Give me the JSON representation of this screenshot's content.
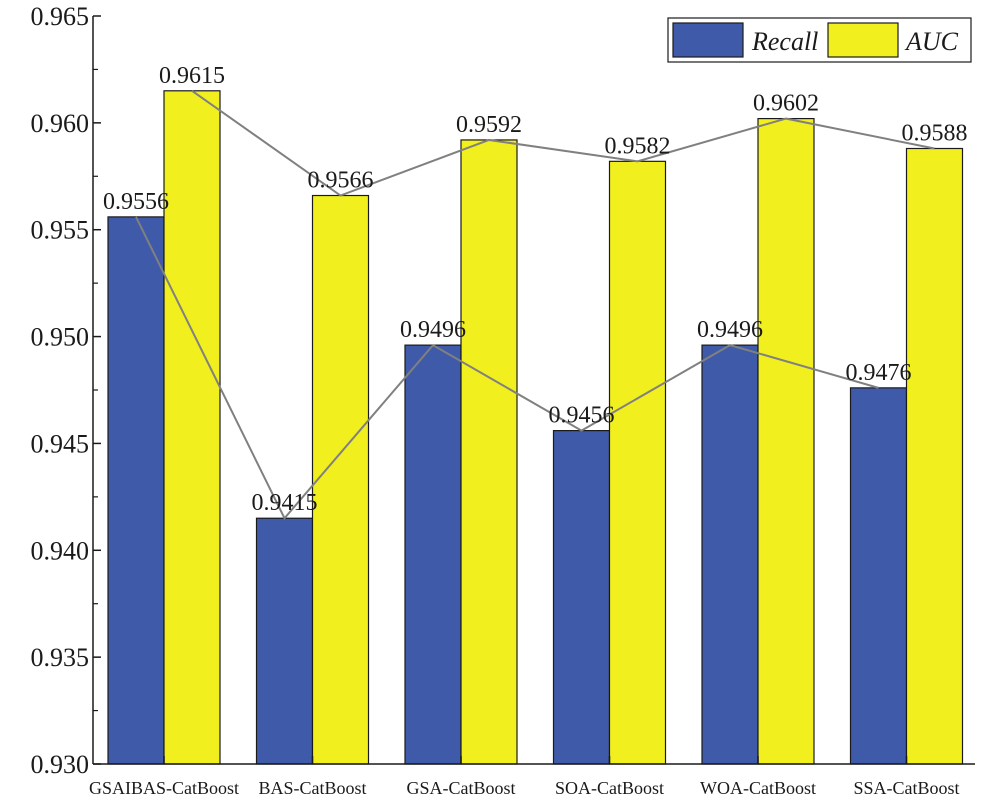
{
  "chart_data": {
    "type": "bar",
    "categories": [
      "GSAIBAS-CatBoost",
      "BAS-CatBoost",
      "GSA-CatBoost",
      "SOA-CatBoost",
      "WOA-CatBoost",
      "SSA-CatBoost"
    ],
    "series": [
      {
        "name": "Recall",
        "values": [
          0.9556,
          0.9415,
          0.9496,
          0.9456,
          0.9496,
          0.9476
        ],
        "labels": [
          "0.9556",
          "0.9415",
          "0.9496",
          "0.9456",
          "0.9496",
          "0.9476"
        ],
        "color": "#3f5aa8"
      },
      {
        "name": "AUC",
        "values": [
          0.9615,
          0.9566,
          0.9592,
          0.9582,
          0.9602,
          0.9588
        ],
        "labels": [
          "0.9615",
          "0.9566",
          "0.9592",
          "0.9582",
          "0.9602",
          "0.9588"
        ],
        "color": "#f2ef1e"
      }
    ],
    "ylim": [
      0.93,
      0.965
    ],
    "yticks": [
      "0.930",
      "0.935",
      "0.940",
      "0.945",
      "0.950",
      "0.955",
      "0.960",
      "0.965"
    ],
    "trend_lines": true,
    "trend_line_color": "#808080",
    "legend_position": "top-right",
    "grid": false
  }
}
